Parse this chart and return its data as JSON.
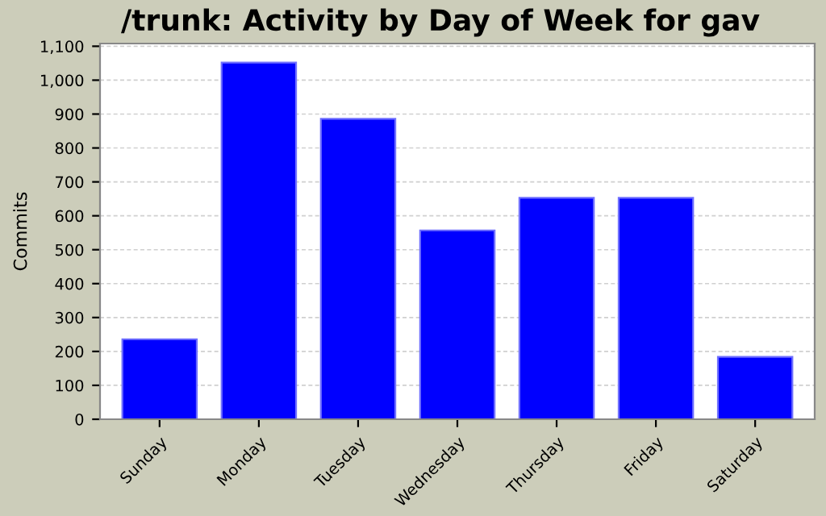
{
  "chart_data": {
    "type": "bar",
    "title": "/trunk: Activity by Day of Week for gav",
    "ylabel": "Commits",
    "categories": [
      "Sunday",
      "Monday",
      "Tuesday",
      "Wednesday",
      "Thursday",
      "Friday",
      "Saturday"
    ],
    "values": [
      236,
      1052,
      886,
      557,
      653,
      653,
      184
    ],
    "color": "#0000ff",
    "ylim": [
      0,
      1108
    ],
    "yticks": [
      0,
      100,
      200,
      300,
      400,
      500,
      600,
      700,
      800,
      900,
      {
        "value": 1000,
        "label": "1,000"
      },
      {
        "value": 1100,
        "label": "1,100"
      }
    ],
    "grid": "y"
  }
}
